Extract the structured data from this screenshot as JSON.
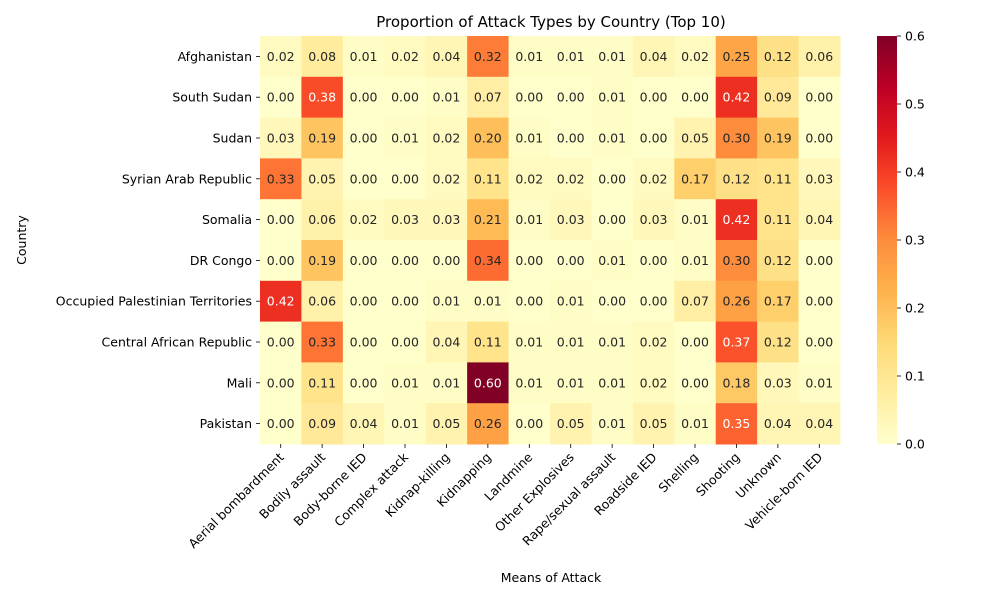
{
  "chart_data": {
    "type": "heatmap",
    "title": "Proportion of Attack Types by Country (Top 10)",
    "xlabel": "Means of Attack",
    "ylabel": "Country",
    "rows": [
      "Afghanistan",
      "South Sudan",
      "Sudan",
      "Syrian Arab Republic",
      "Somalia",
      "DR Congo",
      "Occupied Palestinian Territories",
      "Central African Republic",
      "Mali",
      "Pakistan"
    ],
    "columns": [
      "Aerial bombardment",
      "Bodily assault",
      "Body-borne IED",
      "Complex attack",
      "Kidnap-killing",
      "Kidnapping",
      "Landmine",
      "Other Explosives",
      "Rape/sexual assault",
      "Roadside IED",
      "Shelling",
      "Shooting",
      "Unknown",
      "Vehicle-born IED"
    ],
    "values": [
      [
        0.02,
        0.08,
        0.01,
        0.02,
        0.04,
        0.32,
        0.01,
        0.01,
        0.01,
        0.04,
        0.02,
        0.25,
        0.12,
        0.06
      ],
      [
        0.0,
        0.38,
        0.0,
        0.0,
        0.01,
        0.07,
        0.0,
        0.0,
        0.01,
        0.0,
        0.0,
        0.42,
        0.09,
        0.0
      ],
      [
        0.03,
        0.19,
        0.0,
        0.01,
        0.02,
        0.2,
        0.01,
        0.0,
        0.01,
        0.0,
        0.05,
        0.3,
        0.19,
        0.0
      ],
      [
        0.33,
        0.05,
        0.0,
        0.0,
        0.02,
        0.11,
        0.02,
        0.02,
        0.0,
        0.02,
        0.17,
        0.12,
        0.11,
        0.03
      ],
      [
        0.0,
        0.06,
        0.02,
        0.03,
        0.03,
        0.21,
        0.01,
        0.03,
        0.0,
        0.03,
        0.01,
        0.42,
        0.11,
        0.04
      ],
      [
        0.0,
        0.19,
        0.0,
        0.0,
        0.0,
        0.34,
        0.0,
        0.0,
        0.01,
        0.0,
        0.01,
        0.3,
        0.12,
        0.0
      ],
      [
        0.42,
        0.06,
        0.0,
        0.0,
        0.01,
        0.01,
        0.0,
        0.01,
        0.0,
        0.0,
        0.07,
        0.26,
        0.17,
        0.0
      ],
      [
        0.0,
        0.33,
        0.0,
        0.0,
        0.04,
        0.11,
        0.01,
        0.01,
        0.01,
        0.02,
        0.0,
        0.37,
        0.12,
        0.0
      ],
      [
        0.0,
        0.11,
        0.0,
        0.01,
        0.01,
        0.6,
        0.01,
        0.01,
        0.01,
        0.02,
        0.0,
        0.18,
        0.03,
        0.01
      ],
      [
        0.0,
        0.09,
        0.04,
        0.01,
        0.05,
        0.26,
        0.0,
        0.05,
        0.01,
        0.05,
        0.01,
        0.35,
        0.04,
        0.04
      ]
    ],
    "value_format": "2 decimals",
    "colormap": "YlOrRd",
    "colorbar": {
      "range": [
        0.0,
        0.6
      ],
      "ticks": [
        "0.0",
        "0.1",
        "0.2",
        "0.3",
        "0.4",
        "0.5",
        "0.6"
      ]
    },
    "grid": false,
    "legend": "colorbar right"
  }
}
